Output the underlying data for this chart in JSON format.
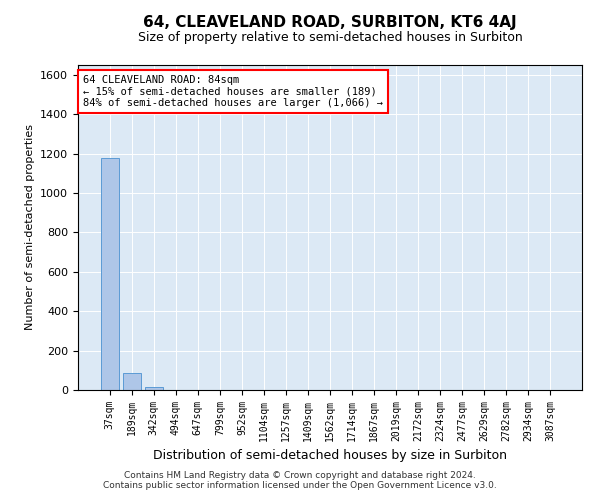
{
  "title": "64, CLEAVELAND ROAD, SURBITON, KT6 4AJ",
  "subtitle": "Size of property relative to semi-detached houses in Surbiton",
  "xlabel": "Distribution of semi-detached houses by size in Surbiton",
  "ylabel": "Number of semi-detached properties",
  "categories": [
    "37sqm",
    "189sqm",
    "342sqm",
    "494sqm",
    "647sqm",
    "799sqm",
    "952sqm",
    "1104sqm",
    "1257sqm",
    "1409sqm",
    "1562sqm",
    "1714sqm",
    "1867sqm",
    "2019sqm",
    "2172sqm",
    "2324sqm",
    "2477sqm",
    "2629sqm",
    "2782sqm",
    "2934sqm",
    "3087sqm"
  ],
  "values": [
    1180,
    85,
    15,
    0,
    0,
    0,
    0,
    0,
    0,
    0,
    0,
    0,
    0,
    0,
    0,
    0,
    0,
    0,
    0,
    0,
    0
  ],
  "bar_color": "#aec6e8",
  "bar_edge_color": "#5b9bd5",
  "annotation_box_text": "64 CLEAVELAND ROAD: 84sqm\n← 15% of semi-detached houses are smaller (189)\n84% of semi-detached houses are larger (1,066) →",
  "ylim": [
    0,
    1650
  ],
  "yticks": [
    0,
    200,
    400,
    600,
    800,
    1000,
    1200,
    1400,
    1600
  ],
  "background_color": "#dce9f5",
  "footer_line1": "Contains HM Land Registry data © Crown copyright and database right 2024.",
  "footer_line2": "Contains public sector information licensed under the Open Government Licence v3.0."
}
